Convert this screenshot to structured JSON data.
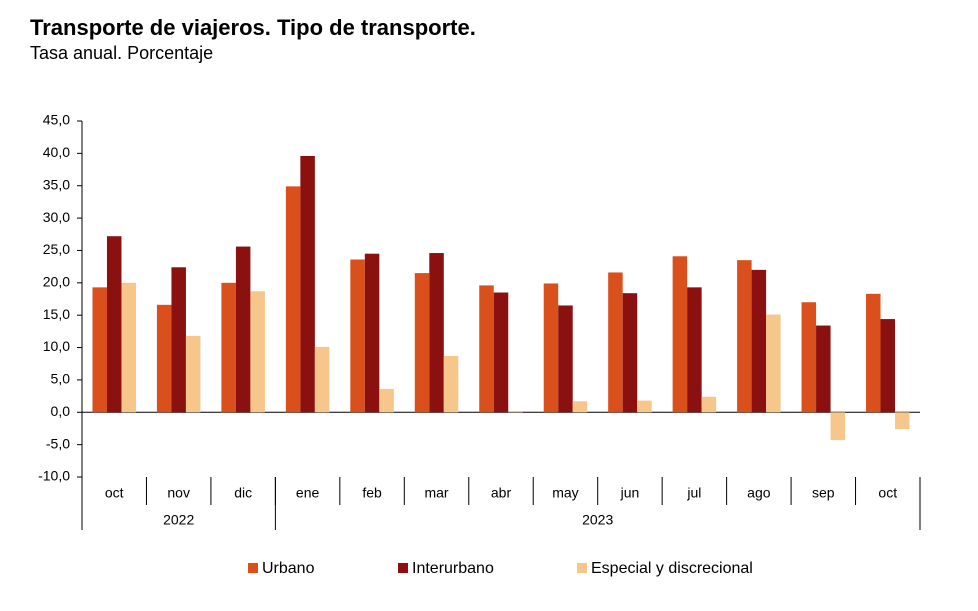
{
  "chart_data": {
    "type": "bar",
    "title": "Transporte de viajeros. Tipo de transporte.",
    "subtitle": "Tasa anual. Porcentaje",
    "categories": [
      "oct",
      "nov",
      "dic",
      "ene",
      "feb",
      "mar",
      "abr",
      "may",
      "jun",
      "jul",
      "ago",
      "sep",
      "oct"
    ],
    "groups": [
      {
        "label": "2022",
        "count": 3
      },
      {
        "label": "2023",
        "count": 10
      }
    ],
    "series": [
      {
        "name": "Urbano",
        "color": "#d9501c",
        "values": [
          19.3,
          16.6,
          20.0,
          34.9,
          23.6,
          21.5,
          19.6,
          19.9,
          21.6,
          24.1,
          23.5,
          17.0,
          18.3
        ]
      },
      {
        "name": "Interurbano",
        "color": "#8b1111",
        "values": [
          27.2,
          22.4,
          25.6,
          39.6,
          24.5,
          24.6,
          18.5,
          16.5,
          18.4,
          19.3,
          22.0,
          13.4,
          14.4
        ]
      },
      {
        "name": "Especial y discrecional",
        "color": "#f7c68a",
        "values": [
          20.0,
          11.8,
          18.7,
          10.1,
          3.6,
          8.7,
          0.2,
          1.7,
          1.8,
          2.4,
          15.1,
          -4.3,
          -2.6
        ]
      }
    ],
    "ylim": [
      -10,
      45
    ],
    "yticks": [
      {
        "value": -10,
        "label": "-10,0"
      },
      {
        "value": -5,
        "label": "-5,0"
      },
      {
        "value": 0,
        "label": "0,0"
      },
      {
        "value": 5,
        "label": "5,0"
      },
      {
        "value": 10,
        "label": "10,0"
      },
      {
        "value": 15,
        "label": "15,0"
      },
      {
        "value": 20,
        "label": "20,0"
      },
      {
        "value": 25,
        "label": "25,0"
      },
      {
        "value": 30,
        "label": "30,0"
      },
      {
        "value": 35,
        "label": "35,0"
      },
      {
        "value": 40,
        "label": "40,0"
      },
      {
        "value": 45,
        "label": "45,0"
      }
    ],
    "grid": false
  }
}
